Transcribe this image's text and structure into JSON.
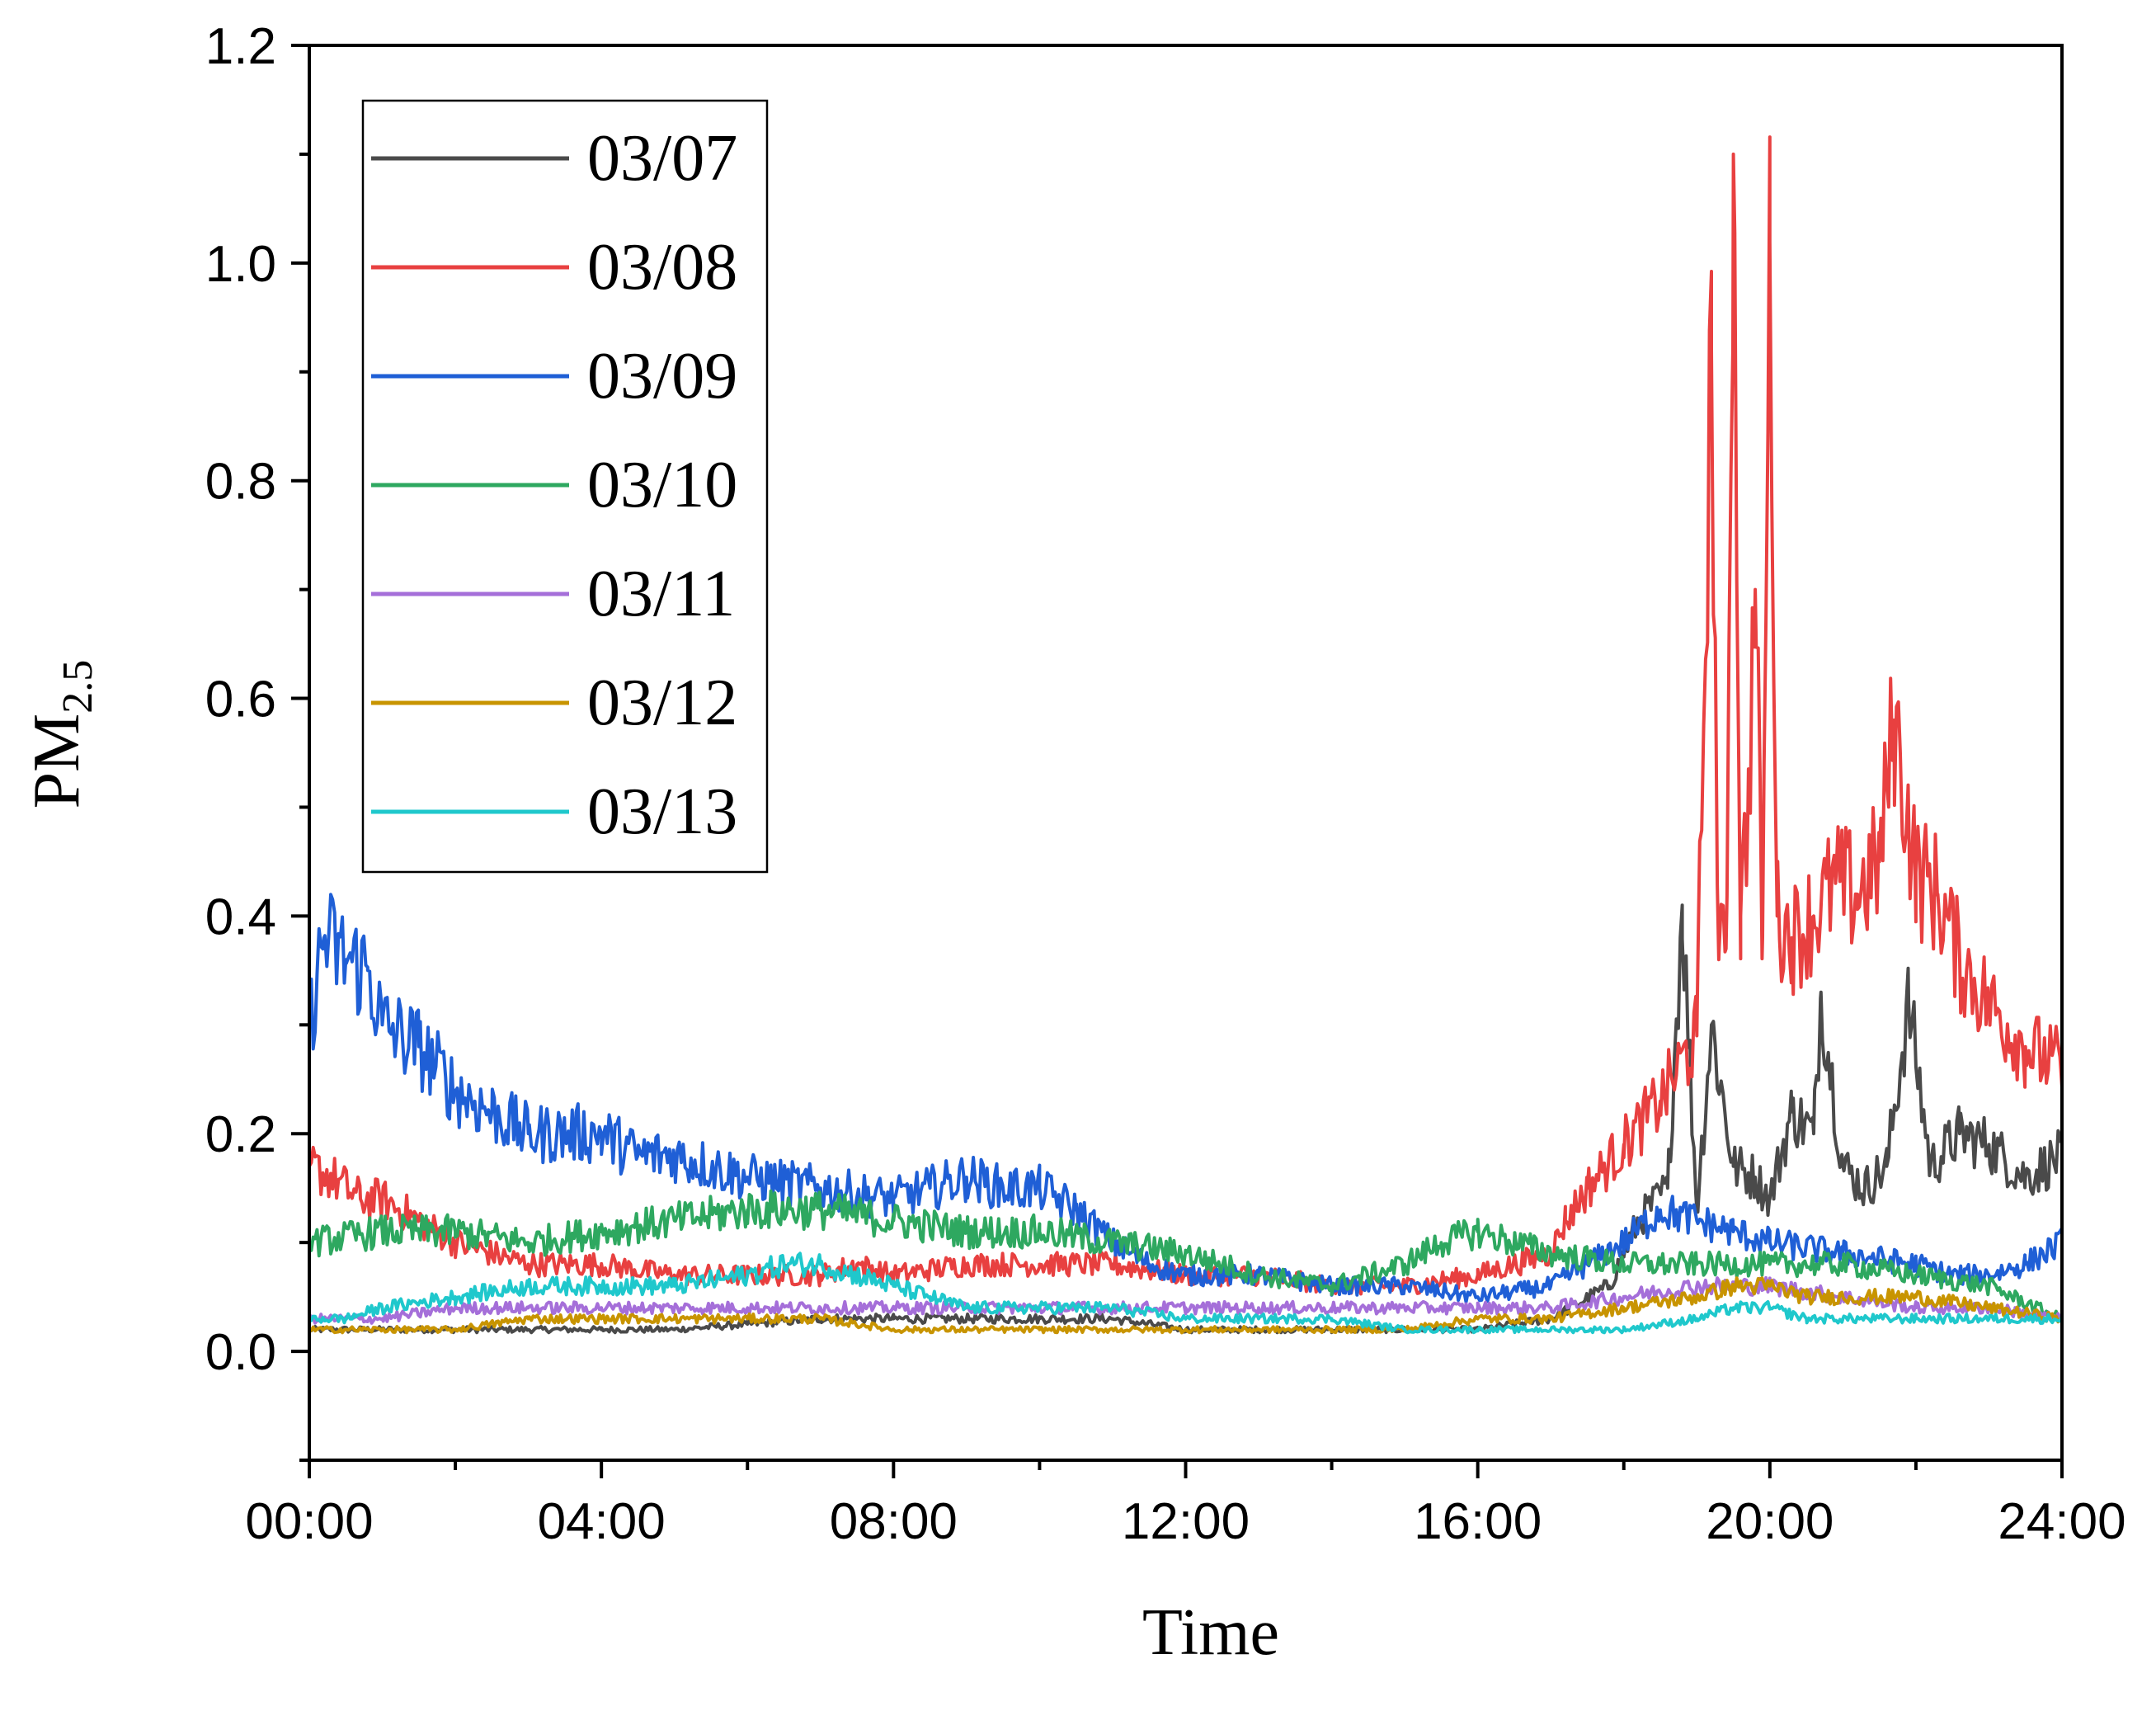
{
  "chart_data": {
    "type": "line",
    "title": "",
    "xlabel": "Time",
    "ylabel_main": "PM",
    "ylabel_sub": "2.5",
    "xlim": [
      0,
      24
    ],
    "ylim": [
      -0.1,
      1.2
    ],
    "grid": false,
    "legend_position": "top-left",
    "x_ticks": [
      {
        "value": 0,
        "label": "00:00"
      },
      {
        "value": 4,
        "label": "04:00"
      },
      {
        "value": 8,
        "label": "08:00"
      },
      {
        "value": 12,
        "label": "12:00"
      },
      {
        "value": 16,
        "label": "16:00"
      },
      {
        "value": 20,
        "label": "20:00"
      },
      {
        "value": 24,
        "label": "24:00"
      }
    ],
    "y_ticks": [
      {
        "value": 0.0,
        "label": "0.0"
      },
      {
        "value": 0.2,
        "label": "0.2"
      },
      {
        "value": 0.4,
        "label": "0.4"
      },
      {
        "value": 0.6,
        "label": "0.6"
      },
      {
        "value": 0.8,
        "label": "0.8"
      },
      {
        "value": 1.0,
        "label": "1.0"
      },
      {
        "value": 1.2,
        "label": "1.2"
      }
    ],
    "series": [
      {
        "name": "03/07",
        "color": "#4a4a4a",
        "x": [
          0,
          1,
          2,
          3,
          4,
          5,
          6,
          7,
          8,
          9,
          10,
          11,
          12,
          13,
          14,
          15,
          16,
          17,
          17.8,
          18.2,
          18.6,
          18.8,
          19.0,
          19.2,
          19.5,
          19.8,
          20.0,
          20.3,
          20.6,
          20.7,
          21.0,
          21.3,
          21.6,
          21.9,
          22.2,
          22.6,
          23.0,
          23.5,
          24
        ],
        "y": [
          0.02,
          0.02,
          0.02,
          0.02,
          0.02,
          0.02,
          0.025,
          0.03,
          0.03,
          0.03,
          0.03,
          0.03,
          0.02,
          0.02,
          0.02,
          0.02,
          0.02,
          0.03,
          0.06,
          0.12,
          0.15,
          0.41,
          0.13,
          0.3,
          0.17,
          0.16,
          0.14,
          0.22,
          0.2,
          0.33,
          0.17,
          0.15,
          0.17,
          0.32,
          0.17,
          0.2,
          0.19,
          0.16,
          0.18
        ]
      },
      {
        "name": "03/08",
        "color": "#e84040",
        "x": [
          0,
          0.3,
          0.7,
          1,
          1.5,
          2,
          2.5,
          3,
          4,
          5,
          6,
          7,
          7.5,
          8,
          9,
          10,
          11,
          12,
          13,
          14,
          15,
          16,
          17,
          17.2,
          17.5,
          18,
          18.5,
          19,
          19.2,
          19.3,
          19.4,
          19.5,
          19.6,
          19.7,
          19.8,
          19.9,
          20.0,
          20.1,
          20.3,
          20.6,
          20.9,
          21.2,
          21.5,
          21.7,
          22,
          22.3,
          22.6,
          23,
          23.5,
          24
        ],
        "y": [
          0.17,
          0.16,
          0.14,
          0.14,
          0.12,
          0.1,
          0.09,
          0.08,
          0.08,
          0.07,
          0.07,
          0.07,
          0.08,
          0.07,
          0.08,
          0.08,
          0.08,
          0.07,
          0.07,
          0.06,
          0.06,
          0.07,
          0.09,
          0.12,
          0.15,
          0.19,
          0.23,
          0.29,
          0.92,
          0.36,
          0.37,
          1.1,
          0.4,
          0.5,
          0.7,
          0.38,
          1.02,
          0.4,
          0.38,
          0.4,
          0.43,
          0.42,
          0.45,
          0.58,
          0.44,
          0.42,
          0.36,
          0.32,
          0.28,
          0.26
        ]
      },
      {
        "name": "03/09",
        "color": "#1f5fd6",
        "x": [
          0,
          0.2,
          0.5,
          0.8,
          1,
          1.5,
          2,
          2.5,
          3,
          3.5,
          4,
          4.5,
          5,
          6,
          7,
          8,
          8.5,
          9,
          9.5,
          10,
          10.5,
          11,
          11.5,
          12,
          13,
          14,
          15,
          16,
          17,
          17.5,
          18,
          18.5,
          19,
          19.5,
          20,
          21,
          22,
          22.5,
          23,
          23.5,
          24
        ],
        "y": [
          0.3,
          0.38,
          0.36,
          0.35,
          0.3,
          0.28,
          0.24,
          0.22,
          0.2,
          0.2,
          0.2,
          0.18,
          0.18,
          0.16,
          0.15,
          0.14,
          0.15,
          0.16,
          0.15,
          0.15,
          0.13,
          0.1,
          0.08,
          0.07,
          0.07,
          0.06,
          0.06,
          0.05,
          0.06,
          0.08,
          0.1,
          0.13,
          0.12,
          0.11,
          0.1,
          0.09,
          0.08,
          0.07,
          0.07,
          0.08,
          0.1
        ]
      },
      {
        "name": "03/10",
        "color": "#2ea860",
        "x": [
          0,
          1,
          2,
          3,
          4,
          5,
          6,
          7,
          8,
          9,
          10,
          11,
          12,
          13,
          14,
          15,
          15.5,
          16,
          16.5,
          17,
          18,
          19,
          20,
          21,
          22,
          23,
          24
        ],
        "y": [
          0.1,
          0.11,
          0.11,
          0.1,
          0.11,
          0.12,
          0.13,
          0.13,
          0.12,
          0.11,
          0.11,
          0.1,
          0.09,
          0.07,
          0.06,
          0.08,
          0.1,
          0.11,
          0.1,
          0.09,
          0.08,
          0.08,
          0.08,
          0.08,
          0.07,
          0.06,
          0.03
        ]
      },
      {
        "name": "03/11",
        "color": "#a56fd9",
        "x": [
          0,
          1,
          2,
          3,
          4,
          5,
          6,
          7,
          8,
          9,
          10,
          11,
          12,
          13,
          14,
          15,
          16,
          17,
          18,
          19,
          20,
          21,
          22,
          23,
          24
        ],
        "y": [
          0.03,
          0.03,
          0.04,
          0.04,
          0.04,
          0.04,
          0.04,
          0.04,
          0.04,
          0.04,
          0.04,
          0.04,
          0.04,
          0.04,
          0.04,
          0.04,
          0.04,
          0.04,
          0.05,
          0.06,
          0.06,
          0.05,
          0.04,
          0.04,
          0.03
        ]
      },
      {
        "name": "03/12",
        "color": "#c89400",
        "x": [
          0,
          1,
          2,
          3,
          4,
          5,
          6,
          7,
          8,
          9,
          10,
          11,
          12,
          13,
          14,
          15,
          16,
          17,
          18,
          19,
          19.5,
          20,
          20.5,
          21,
          22,
          23,
          24
        ],
        "y": [
          0.02,
          0.02,
          0.02,
          0.03,
          0.03,
          0.03,
          0.03,
          0.03,
          0.02,
          0.02,
          0.02,
          0.02,
          0.02,
          0.02,
          0.02,
          0.02,
          0.03,
          0.03,
          0.04,
          0.05,
          0.06,
          0.06,
          0.05,
          0.05,
          0.05,
          0.04,
          0.03
        ]
      },
      {
        "name": "03/13",
        "color": "#1fc8cc",
        "x": [
          0,
          0.5,
          1,
          2,
          3,
          4,
          5,
          6,
          6.5,
          7,
          7.5,
          8,
          8.5,
          9,
          10,
          11,
          12,
          13,
          14,
          15,
          16,
          17,
          18,
          19,
          19.5,
          20,
          20.5,
          21,
          22,
          23,
          24
        ],
        "y": [
          0.03,
          0.03,
          0.04,
          0.05,
          0.06,
          0.06,
          0.06,
          0.07,
          0.08,
          0.08,
          0.07,
          0.06,
          0.05,
          0.04,
          0.04,
          0.04,
          0.03,
          0.03,
          0.03,
          0.02,
          0.02,
          0.02,
          0.02,
          0.03,
          0.04,
          0.04,
          0.03,
          0.03,
          0.03,
          0.03,
          0.03
        ]
      }
    ]
  }
}
